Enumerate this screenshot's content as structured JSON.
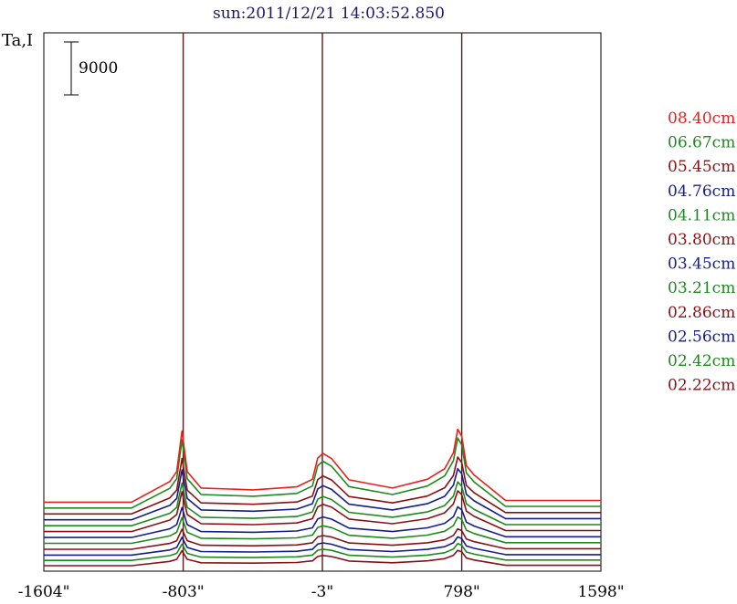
{
  "chart_data": {
    "type": "line",
    "title": "sun:2011/12/21 14:03:52.850",
    "ylabel": "Ta,I",
    "scale_bar_label": "9000",
    "x_ticks": [
      "-1604\"",
      "-803\"",
      "-3\"",
      "798\"",
      "1598\""
    ],
    "x_tick_values": [
      -1604,
      -803,
      -3,
      798,
      1598
    ],
    "xlim": [
      -1604,
      1598
    ],
    "vertical_lines": [
      -803,
      -3,
      798
    ],
    "grid": false,
    "legend_position": "right",
    "series_shape_x": [
      -1604,
      -1100,
      -880,
      -840,
      -810,
      -780,
      -740,
      -700,
      -400,
      -150,
      -60,
      -30,
      0,
      50,
      150,
      400,
      600,
      700,
      750,
      775,
      798,
      825,
      870,
      1050,
      1598
    ],
    "series": [
      {
        "name": "08.40cm",
        "color": "#e8201c",
        "offset": 10800,
        "level": 1.0,
        "shape": [
          0,
          0,
          3500,
          5200,
          12100,
          5200,
          3800,
          2400,
          2100,
          2600,
          3900,
          7500,
          8300,
          7400,
          3800,
          2400,
          3900,
          5700,
          8400,
          12400,
          11200,
          6200,
          4600,
          300,
          300
        ]
      },
      {
        "name": "06.67cm",
        "color": "#1d8a1d",
        "offset": 9800,
        "level": 0.96,
        "shape": [
          0,
          0,
          3500,
          5200,
          12100,
          5200,
          3800,
          2400,
          2100,
          2600,
          3900,
          7500,
          8300,
          7400,
          3800,
          2400,
          3900,
          5700,
          8400,
          12400,
          11200,
          6200,
          4600,
          300,
          300
        ]
      },
      {
        "name": "05.45cm",
        "color": "#8b1014",
        "offset": 8800,
        "level": 0.78,
        "shape": [
          0,
          0,
          3500,
          5200,
          12100,
          5200,
          3800,
          2400,
          2100,
          2600,
          3900,
          7500,
          8300,
          7400,
          3800,
          2400,
          3900,
          5700,
          8400,
          12400,
          11200,
          6200,
          4600,
          300,
          300
        ]
      },
      {
        "name": "04.76cm",
        "color": "#141e8a",
        "offset": 7800,
        "level": 0.7,
        "shape": [
          0,
          0,
          3500,
          5200,
          12100,
          5200,
          3800,
          2400,
          2100,
          2600,
          3900,
          7500,
          8300,
          7400,
          3800,
          2400,
          3900,
          5700,
          8400,
          12400,
          11200,
          6200,
          4600,
          300,
          300
        ]
      },
      {
        "name": "04.11cm",
        "color": "#1d8a1d",
        "offset": 6800,
        "level": 0.6,
        "shape": [
          0,
          0,
          3500,
          5200,
          12100,
          5200,
          3800,
          2400,
          2100,
          2600,
          3900,
          7500,
          8300,
          7400,
          3800,
          2400,
          3900,
          5700,
          8400,
          12400,
          11200,
          6200,
          4600,
          300,
          300
        ]
      },
      {
        "name": "03.80cm",
        "color": "#8b1014",
        "offset": 5800,
        "level": 0.56,
        "shape": [
          0,
          0,
          3500,
          5200,
          12100,
          5200,
          3800,
          2400,
          2100,
          2600,
          3900,
          7500,
          8300,
          7400,
          3800,
          2400,
          3900,
          5700,
          8400,
          12400,
          11200,
          6200,
          4600,
          300,
          300
        ]
      },
      {
        "name": "03.45cm",
        "color": "#141e8a",
        "offset": 4800,
        "level": 0.42,
        "shape": [
          0,
          0,
          3500,
          5200,
          12100,
          5200,
          3800,
          2400,
          2100,
          2600,
          3900,
          7500,
          8300,
          7400,
          3800,
          2400,
          3900,
          5700,
          8400,
          12400,
          11200,
          6200,
          4600,
          300,
          300
        ]
      },
      {
        "name": "03.21cm",
        "color": "#1d8a1d",
        "offset": 3800,
        "level": 0.36,
        "shape": [
          0,
          0,
          3500,
          5200,
          12100,
          5200,
          3800,
          2400,
          2100,
          2600,
          3900,
          7500,
          8300,
          7400,
          3800,
          2400,
          3900,
          5700,
          8400,
          12400,
          11200,
          6200,
          4600,
          300,
          300
        ]
      },
      {
        "name": "02.86cm",
        "color": "#8b1014",
        "offset": 2800,
        "level": 0.28,
        "shape": [
          0,
          0,
          3500,
          5200,
          12100,
          5200,
          3800,
          2400,
          2100,
          2600,
          3900,
          7500,
          8300,
          7400,
          3800,
          2400,
          3900,
          5700,
          8400,
          12400,
          11200,
          6200,
          4600,
          300,
          300
        ]
      },
      {
        "name": "02.56cm",
        "color": "#141e8a",
        "offset": 1800,
        "level": 0.25,
        "shape": [
          0,
          0,
          3500,
          5200,
          12100,
          5200,
          3800,
          2400,
          2100,
          2600,
          3900,
          7500,
          8300,
          7400,
          3800,
          2400,
          3900,
          5700,
          8400,
          12400,
          11200,
          6200,
          4600,
          300,
          300
        ]
      },
      {
        "name": "02.42cm",
        "color": "#1d8a1d",
        "offset": 900,
        "level": 0.23,
        "shape": [
          0,
          0,
          3500,
          5200,
          12100,
          5200,
          3800,
          2400,
          2100,
          2600,
          3900,
          7500,
          8300,
          7400,
          3800,
          2400,
          3900,
          5700,
          8400,
          12400,
          11200,
          6200,
          4600,
          300,
          300
        ]
      },
      {
        "name": "02.22cm",
        "color": "#8b1014",
        "offset": 0,
        "level": 0.21,
        "shape": [
          0,
          0,
          3500,
          5200,
          12100,
          5200,
          3800,
          2400,
          2100,
          2600,
          3900,
          7500,
          8300,
          7400,
          3800,
          2400,
          3900,
          5700,
          8400,
          12400,
          11200,
          6200,
          4600,
          300,
          300
        ]
      }
    ]
  }
}
